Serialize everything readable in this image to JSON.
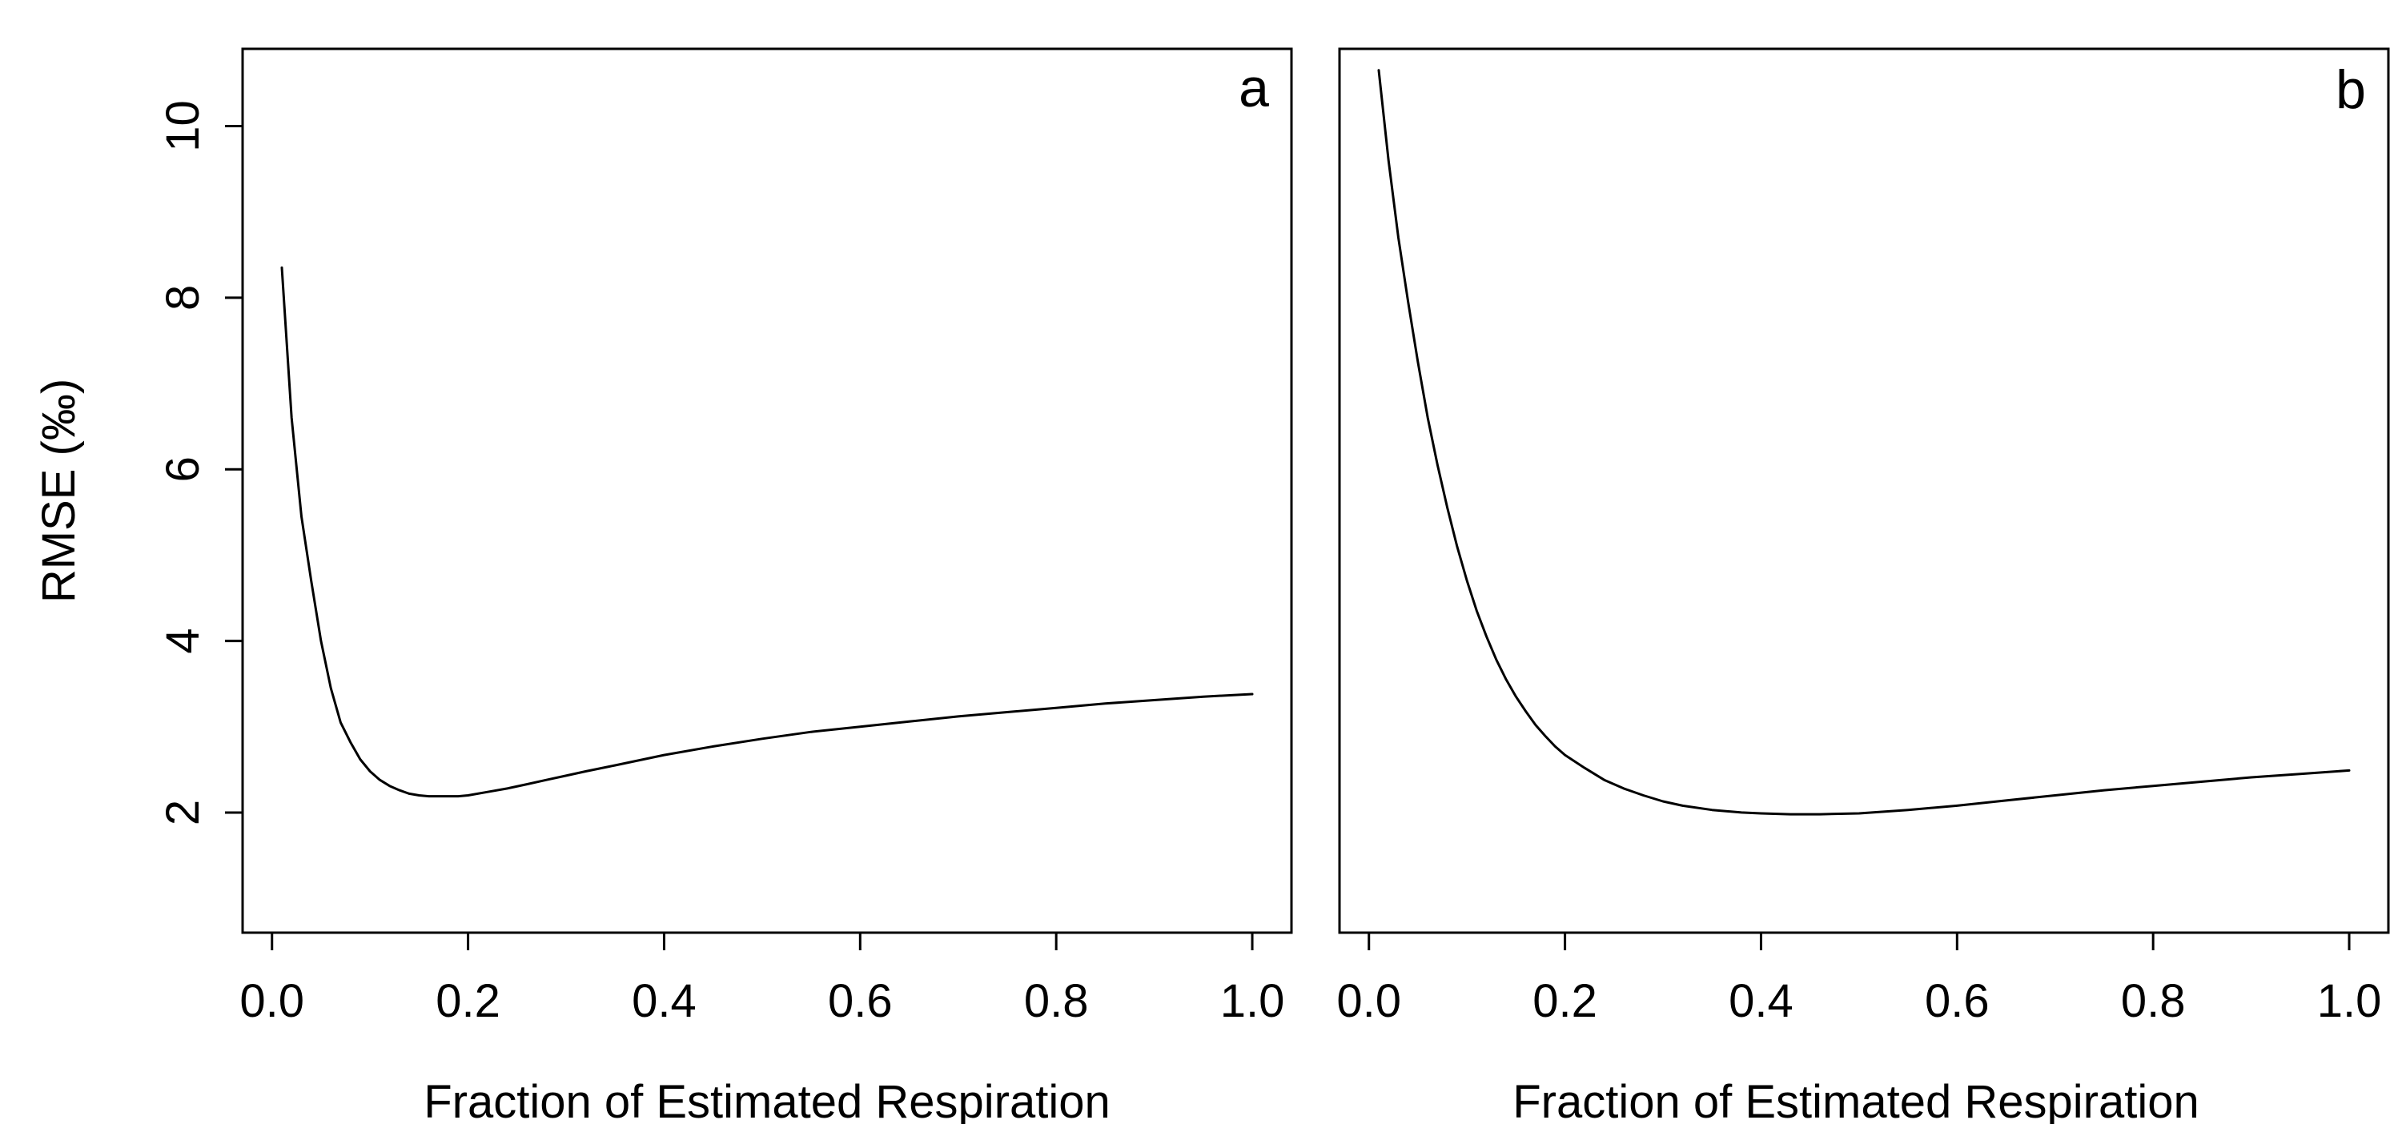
{
  "chart_data": [
    {
      "type": "line",
      "panel_label": "a",
      "xlabel": "Fraction of Estimated Respiration",
      "ylabel": "RMSE (‰)",
      "xlim": [
        -0.03,
        1.04
      ],
      "ylim": [
        0.6,
        10.9
      ],
      "xticks": [
        0.0,
        0.2,
        0.4,
        0.6,
        0.8,
        1.0
      ],
      "xtick_labels": [
        "0.0",
        "0.2",
        "0.4",
        "0.6",
        "0.8",
        "1.0"
      ],
      "yticks": [
        2,
        4,
        6,
        8,
        10
      ],
      "ytick_labels": [
        "2",
        "4",
        "6",
        "8",
        "10"
      ],
      "grid": false,
      "series": [
        {
          "x": [
            0.01,
            0.02,
            0.03,
            0.04,
            0.05,
            0.06,
            0.07,
            0.08,
            0.09,
            0.1,
            0.11,
            0.12,
            0.13,
            0.14,
            0.15,
            0.16,
            0.17,
            0.18,
            0.19,
            0.2,
            0.22,
            0.24,
            0.26,
            0.28,
            0.3,
            0.32,
            0.35,
            0.4,
            0.45,
            0.5,
            0.55,
            0.6,
            0.65,
            0.7,
            0.75,
            0.8,
            0.85,
            0.9,
            0.95,
            1.0
          ],
          "y": [
            8.35,
            6.6,
            5.45,
            4.7,
            4.0,
            3.45,
            3.05,
            2.82,
            2.62,
            2.48,
            2.38,
            2.31,
            2.26,
            2.22,
            2.2,
            2.19,
            2.19,
            2.19,
            2.19,
            2.2,
            2.24,
            2.28,
            2.33,
            2.38,
            2.43,
            2.48,
            2.55,
            2.67,
            2.77,
            2.86,
            2.94,
            3.0,
            3.06,
            3.12,
            3.17,
            3.22,
            3.27,
            3.31,
            3.35,
            3.38
          ]
        }
      ]
    },
    {
      "type": "line",
      "panel_label": "b",
      "xlabel": "Fraction of Estimated Respiration",
      "ylabel": "",
      "xlim": [
        -0.03,
        1.04
      ],
      "ylim": [
        0.6,
        10.9
      ],
      "xticks": [
        0.0,
        0.2,
        0.4,
        0.6,
        0.8,
        1.0
      ],
      "xtick_labels": [
        "0.0",
        "0.2",
        "0.4",
        "0.6",
        "0.8",
        "1.0"
      ],
      "yticks": [],
      "ytick_labels": [],
      "grid": false,
      "series": [
        {
          "x": [
            0.01,
            0.02,
            0.03,
            0.04,
            0.05,
            0.06,
            0.07,
            0.08,
            0.09,
            0.1,
            0.11,
            0.12,
            0.13,
            0.14,
            0.15,
            0.16,
            0.17,
            0.18,
            0.19,
            0.2,
            0.22,
            0.24,
            0.26,
            0.28,
            0.3,
            0.32,
            0.35,
            0.38,
            0.4,
            0.43,
            0.46,
            0.5,
            0.55,
            0.6,
            0.65,
            0.7,
            0.75,
            0.8,
            0.85,
            0.9,
            0.95,
            1.0
          ],
          "y": [
            10.65,
            9.6,
            8.7,
            7.95,
            7.25,
            6.6,
            6.05,
            5.55,
            5.1,
            4.7,
            4.35,
            4.05,
            3.78,
            3.55,
            3.35,
            3.18,
            3.02,
            2.89,
            2.77,
            2.67,
            2.52,
            2.38,
            2.28,
            2.2,
            2.13,
            2.08,
            2.03,
            2.0,
            1.99,
            1.98,
            1.98,
            1.99,
            2.03,
            2.08,
            2.14,
            2.2,
            2.26,
            2.31,
            2.36,
            2.41,
            2.45,
            2.49
          ]
        }
      ]
    }
  ]
}
